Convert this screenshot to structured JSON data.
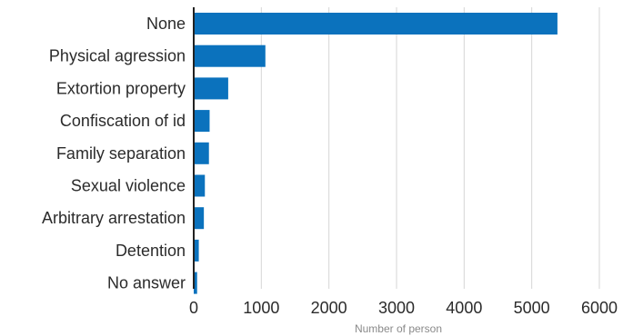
{
  "chart_data": {
    "type": "bar",
    "orientation": "horizontal",
    "categories": [
      "None",
      "Physical agression",
      "Extortion property",
      "Confiscation of id",
      "Family separation",
      "Sexual violence",
      "Arbitrary arrestation",
      "Detention",
      "No answer"
    ],
    "values": [
      5380,
      1060,
      510,
      235,
      225,
      165,
      150,
      75,
      50
    ],
    "title": "",
    "xlabel": "Number of person",
    "ylabel": "",
    "xlim": [
      0,
      6000
    ],
    "xticks": [
      "0",
      "1000",
      "2000",
      "3000",
      "4000",
      "5000",
      "6000"
    ],
    "grid": "vertical",
    "bar_color": "#0b72bd"
  }
}
